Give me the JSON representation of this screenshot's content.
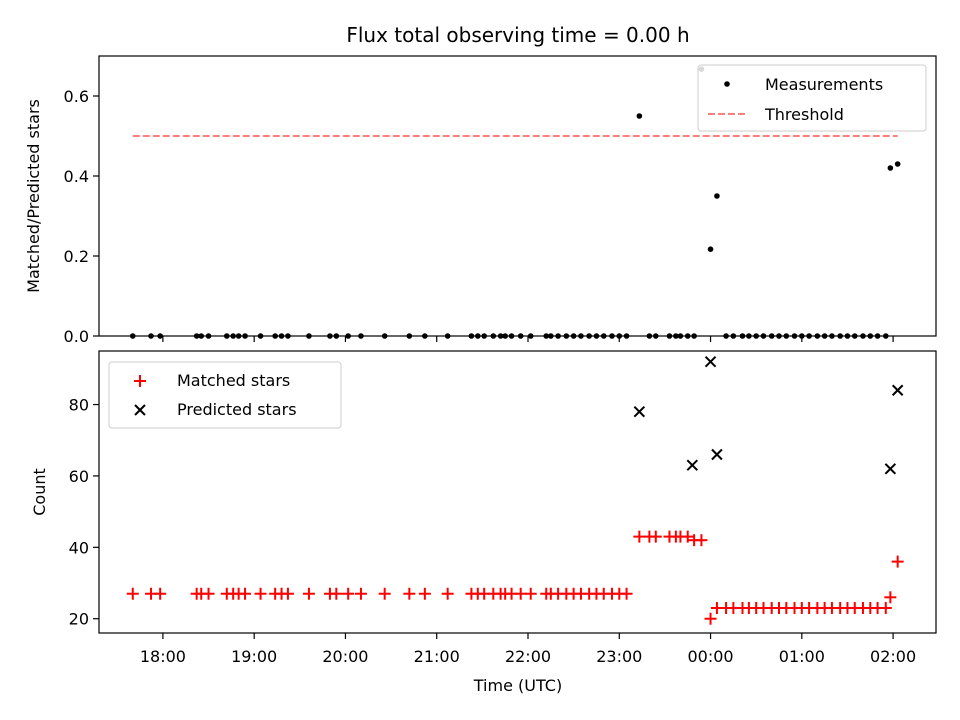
{
  "chart_data": [
    {
      "type": "scatter",
      "title": "Flux total observing time = 0.00 h",
      "xlabel": "",
      "ylabel": "Matched/Predicted stars",
      "ylim": [
        0,
        0.7
      ],
      "yticks": [
        "0.0",
        "0.2",
        "0.4",
        "0.6"
      ],
      "ytick_values": [
        0,
        0.2,
        0.4,
        0.6
      ],
      "legend": {
        "placement": "top-right",
        "entries": [
          "Measurements",
          "Threshold"
        ]
      },
      "series": [
        {
          "name": "Measurements",
          "marker": "dot",
          "color": "#000000",
          "x": [
            17.67,
            17.87,
            17.97,
            18.37,
            18.42,
            18.5,
            18.7,
            18.77,
            18.83,
            18.9,
            19.07,
            19.23,
            19.3,
            19.37,
            19.6,
            19.83,
            19.9,
            20.03,
            20.17,
            20.43,
            20.7,
            20.87,
            21.12,
            21.38,
            21.45,
            21.52,
            21.62,
            21.7,
            21.75,
            21.82,
            21.92,
            22.03,
            22.2,
            22.25,
            22.33,
            22.42,
            22.5,
            22.58,
            22.67,
            22.75,
            22.83,
            22.92,
            23.0,
            23.08,
            23.22,
            23.33,
            23.4,
            23.55,
            23.62,
            23.67,
            23.75,
            23.82,
            23.9,
            24.0,
            24.07,
            24.17,
            24.25,
            24.35,
            24.42,
            24.5,
            24.58,
            24.67,
            24.75,
            24.83,
            24.92,
            25.0,
            25.08,
            25.17,
            25.25,
            25.33,
            25.42,
            25.5,
            25.58,
            25.67,
            25.75,
            25.83,
            25.92,
            25.97,
            26.05
          ],
          "y": [
            0,
            0,
            0,
            0,
            0,
            0,
            0,
            0,
            0,
            0,
            0,
            0,
            0,
            0,
            0,
            0,
            0,
            0,
            0,
            0,
            0,
            0,
            0,
            0,
            0,
            0,
            0,
            0,
            0,
            0,
            0,
            0,
            0,
            0,
            0,
            0,
            0,
            0,
            0,
            0,
            0,
            0,
            0,
            0,
            0.55,
            0,
            0,
            0,
            0,
            0,
            0,
            0,
            0.667,
            0.217,
            0.35,
            0,
            0,
            0,
            0,
            0,
            0,
            0,
            0,
            0,
            0,
            0,
            0,
            0,
            0,
            0,
            0,
            0,
            0,
            0,
            0,
            0,
            0,
            0.42,
            0.43
          ]
        },
        {
          "name": "Threshold",
          "style": "dashed",
          "color": "#ff7f7f",
          "x": [
            17.67,
            26.05
          ],
          "y": [
            0.5,
            0.5
          ]
        }
      ]
    },
    {
      "type": "scatter",
      "title": "",
      "xlabel": "Time (UTC)",
      "ylabel": "Count",
      "ylim": [
        16,
        95
      ],
      "yticks": [
        "20",
        "40",
        "60",
        "80"
      ],
      "ytick_values": [
        20,
        40,
        60,
        80
      ],
      "xticks": [
        "18:00",
        "19:00",
        "20:00",
        "21:00",
        "22:00",
        "23:00",
        "00:00",
        "01:00",
        "02:00"
      ],
      "xtick_values": [
        18,
        19,
        20,
        21,
        22,
        23,
        24,
        25,
        26
      ],
      "xlim": [
        17.3,
        26.47
      ],
      "legend": {
        "placement": "top-left",
        "entries": [
          "Matched stars",
          "Predicted stars"
        ]
      },
      "series": [
        {
          "name": "Matched stars",
          "marker": "plus",
          "color": "#ff0000",
          "x": [
            17.67,
            17.87,
            17.97,
            18.37,
            18.42,
            18.5,
            18.7,
            18.77,
            18.83,
            18.9,
            19.07,
            19.23,
            19.3,
            19.37,
            19.6,
            19.83,
            19.9,
            20.03,
            20.17,
            20.43,
            20.7,
            20.87,
            21.12,
            21.38,
            21.45,
            21.52,
            21.62,
            21.7,
            21.75,
            21.82,
            21.92,
            22.03,
            22.2,
            22.25,
            22.33,
            22.42,
            22.5,
            22.58,
            22.67,
            22.75,
            22.83,
            22.92,
            23.0,
            23.08,
            23.22,
            23.33,
            23.4,
            23.55,
            23.62,
            23.67,
            23.75,
            23.82,
            23.9,
            24.0,
            24.07,
            24.17,
            24.25,
            24.35,
            24.42,
            24.5,
            24.58,
            24.67,
            24.75,
            24.83,
            24.92,
            25.0,
            25.08,
            25.17,
            25.25,
            25.33,
            25.42,
            25.5,
            25.58,
            25.67,
            25.75,
            25.83,
            25.92,
            25.97,
            26.05
          ],
          "y": [
            27,
            27,
            27,
            27,
            27,
            27,
            27,
            27,
            27,
            27,
            27,
            27,
            27,
            27,
            27,
            27,
            27,
            27,
            27,
            27,
            27,
            27,
            27,
            27,
            27,
            27,
            27,
            27,
            27,
            27,
            27,
            27,
            27,
            27,
            27,
            27,
            27,
            27,
            27,
            27,
            27,
            27,
            27,
            27,
            43,
            43,
            43,
            43,
            43,
            43,
            43,
            42,
            42,
            20,
            23,
            23,
            23,
            23,
            23,
            23,
            23,
            23,
            23,
            23,
            23,
            23,
            23,
            23,
            23,
            23,
            23,
            23,
            23,
            23,
            23,
            23,
            23,
            26,
            36
          ]
        },
        {
          "name": "Predicted stars",
          "marker": "x",
          "color": "#000000",
          "x": [
            23.22,
            23.8,
            24.0,
            24.07,
            25.97,
            26.05
          ],
          "y": [
            78,
            63,
            92,
            66,
            62,
            84
          ]
        }
      ]
    }
  ]
}
